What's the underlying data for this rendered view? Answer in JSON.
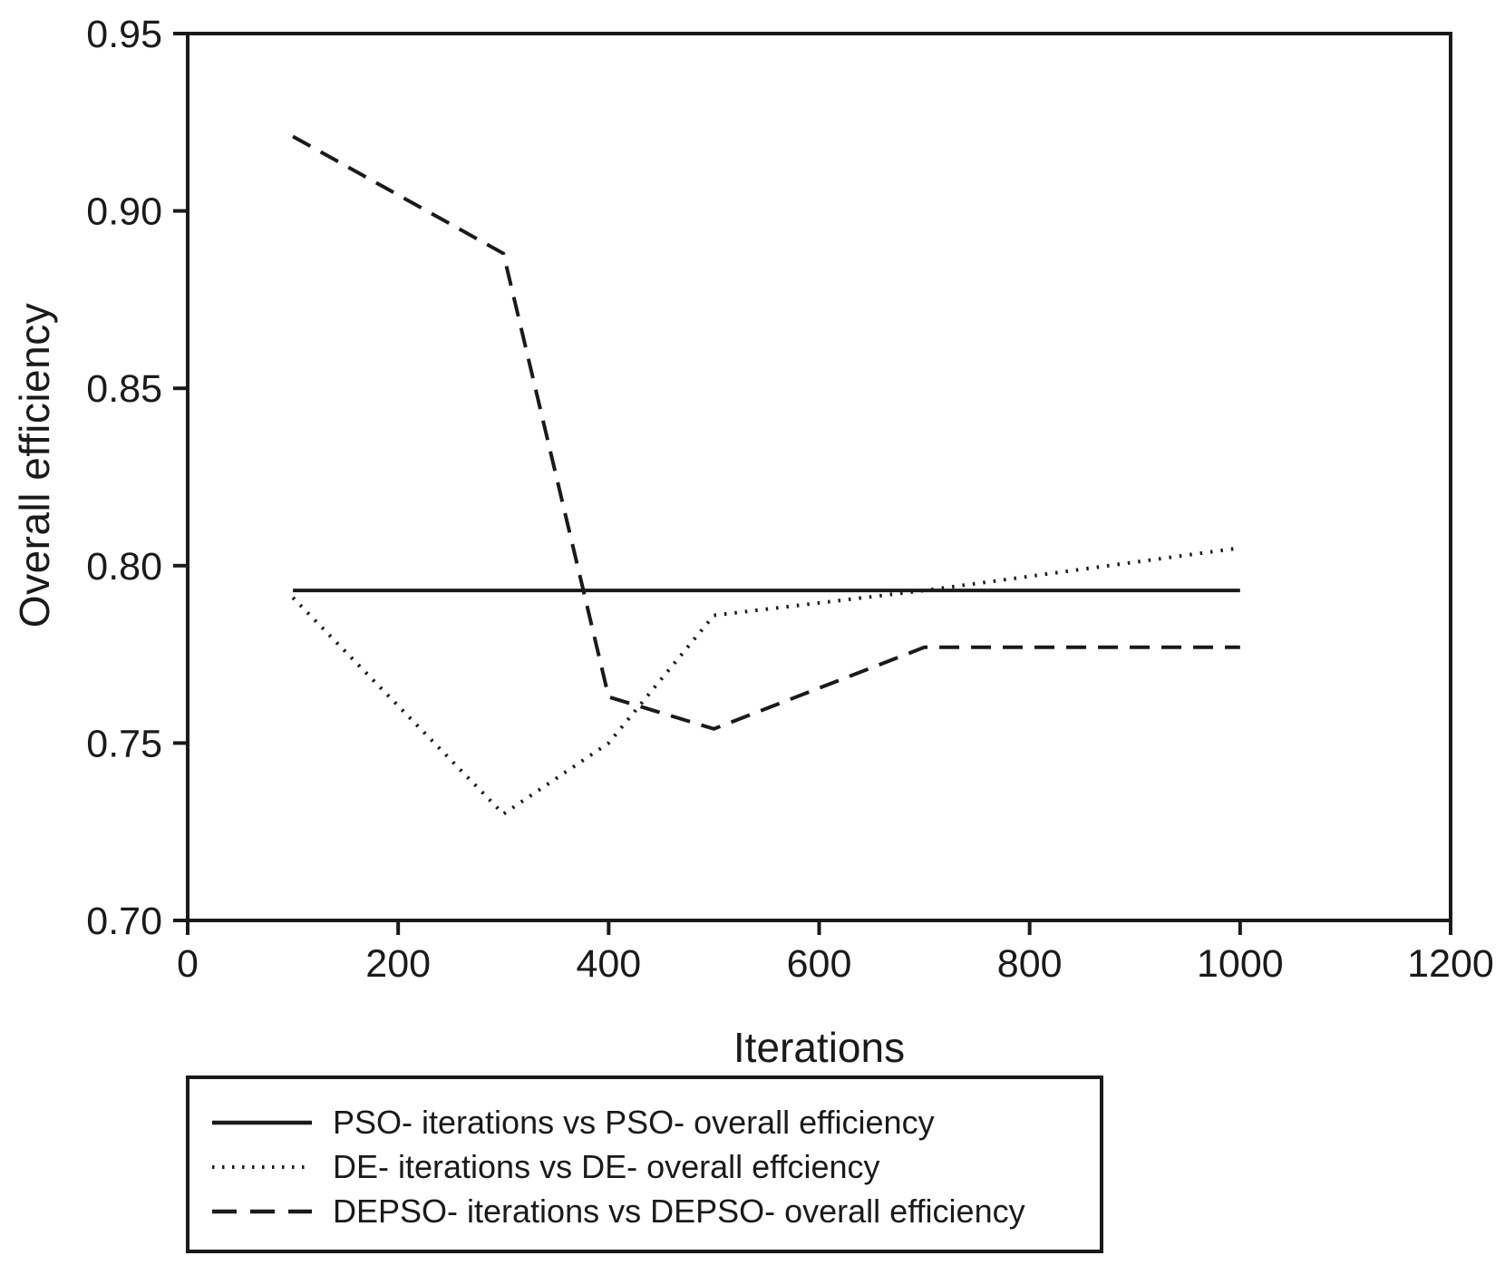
{
  "page": {
    "background": "#ffffff"
  },
  "chart_data": {
    "type": "line",
    "title": "",
    "xlabel": "Iterations",
    "ylabel": "Overall efficiency",
    "xlim": [
      0,
      1200
    ],
    "ylim": [
      0.7,
      0.95
    ],
    "x_ticks": [
      0,
      200,
      400,
      600,
      800,
      1000,
      1200
    ],
    "x_tick_labels": [
      "0",
      "200",
      "400",
      "600",
      "800",
      "1000",
      "1200"
    ],
    "y_ticks": [
      0.7,
      0.75,
      0.8,
      0.85,
      0.9,
      0.95
    ],
    "y_tick_labels": [
      "0.70",
      "0.75",
      "0.80",
      "0.85",
      "0.90",
      "0.95"
    ],
    "grid": false,
    "legend_position": "boxed-below-chart",
    "axis_color": "#1a1a1a",
    "series": [
      {
        "name": "PSO",
        "legend_label": "PSO- iterations vs PSO- overall efficiency",
        "line_style": "solid",
        "color": "#1a1a1a",
        "x": [
          100,
          1000
        ],
        "y": [
          0.793,
          0.793
        ]
      },
      {
        "name": "DE",
        "legend_label": "DE- iterations vs DE- overall effciency",
        "line_style": "dotted",
        "color": "#1a1a1a",
        "x": [
          100,
          300,
          400,
          500,
          700,
          1000
        ],
        "y": [
          0.791,
          0.73,
          0.75,
          0.786,
          0.793,
          0.805
        ]
      },
      {
        "name": "DEPSO",
        "legend_label": "DEPSO- iterations vs DEPSO- overall efficiency",
        "line_style": "dashed",
        "color": "#1a1a1a",
        "x": [
          100,
          300,
          400,
          500,
          700,
          1000
        ],
        "y": [
          0.921,
          0.888,
          0.763,
          0.754,
          0.777,
          0.777
        ]
      }
    ]
  }
}
